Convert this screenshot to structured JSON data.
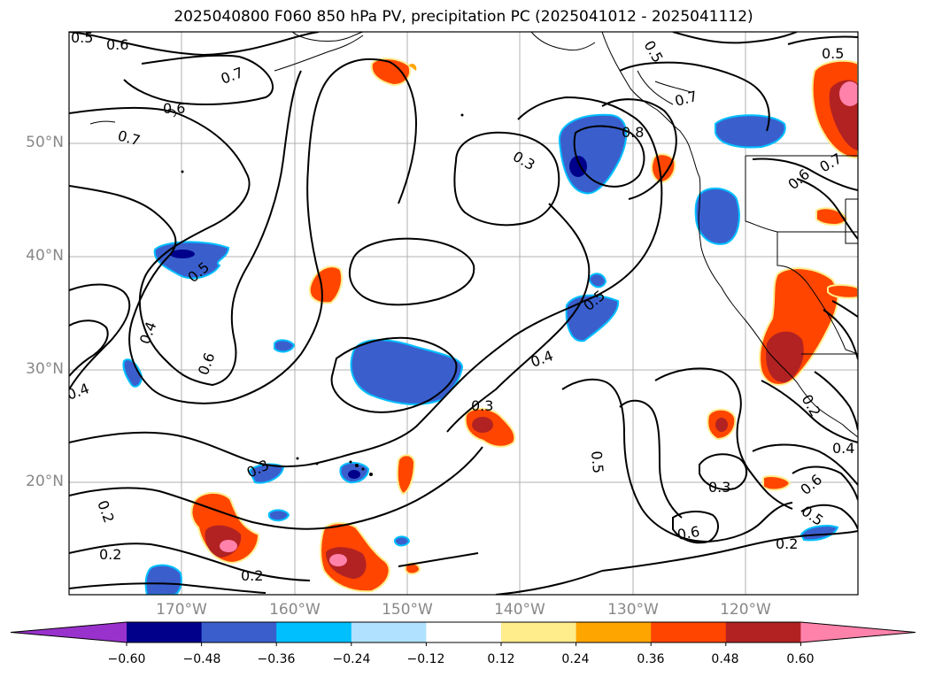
{
  "title": "2025040800 F060 850 hPa PV, precipitation PC (2025041012 - 2025041112)",
  "lat_labels": [
    "50°N",
    "40°N",
    "30°N",
    "20°N"
  ],
  "lon_labels": [
    "170°W",
    "160°W",
    "150°W",
    "140°W",
    "130°W",
    "120°W"
  ],
  "contour_labels": [
    "0.5",
    "0.6",
    "0.7",
    "0.6",
    "0.7",
    "0.5",
    "0.4",
    "0.6",
    "0.4",
    "0.2",
    "0.2",
    "0.2",
    "0.3",
    "0.3",
    "0.4",
    "0.5",
    "0.3",
    "0.5",
    "0.8",
    "0.7",
    "0.5",
    "0.5",
    "0.3",
    "0.6",
    "0.2",
    "0.4",
    "0.6",
    "0.5",
    "0.2",
    "0.6",
    "0.7"
  ],
  "colorbar": {
    "colors": [
      "#9932cc",
      "#00008b",
      "#3a5fcd",
      "#00bfff",
      "#b0e2ff",
      "#ffffff",
      "#ffec8b",
      "#ffa500",
      "#ff4500",
      "#b22222",
      "#ff82ab"
    ],
    "tick_labels": [
      "−0.60",
      "−0.48",
      "−0.36",
      "−0.24",
      "−0.12",
      "0.12",
      "0.24",
      "0.36",
      "0.48",
      "0.60"
    ]
  }
}
